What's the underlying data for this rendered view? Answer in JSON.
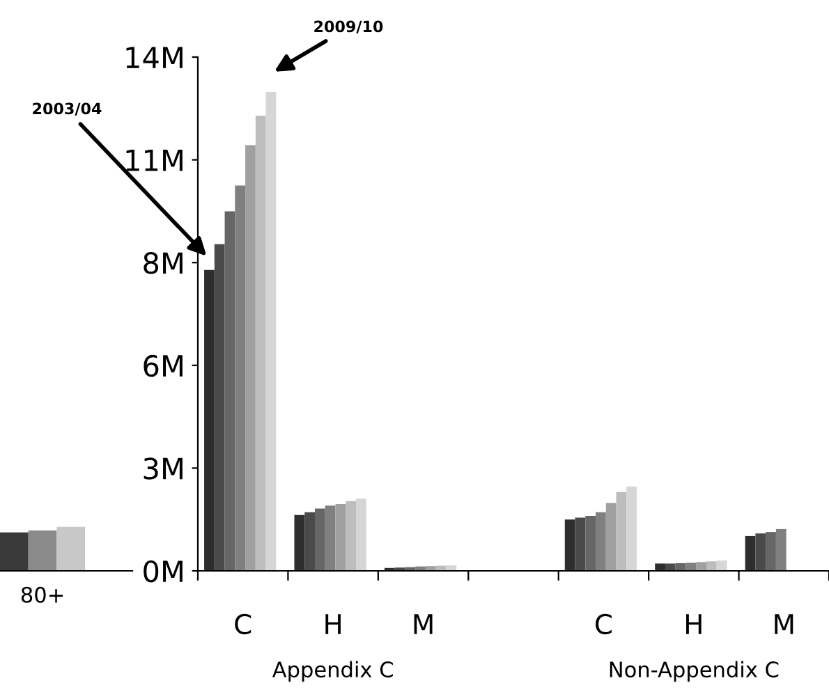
{
  "chart_data": [
    {
      "type": "bar",
      "categories": [
        "80+"
      ],
      "tick_labels": "x",
      "ylim": [
        0,
        14
      ],
      "series": [
        {
          "color": "#3a3a3a",
          "values": [
            1.05
          ]
        },
        {
          "color": "#8a8a8a",
          "values": [
            1.1
          ]
        },
        {
          "color": "#c8c8c8",
          "values": [
            1.2
          ]
        }
      ]
    },
    {
      "type": "bar",
      "categories": [
        "C",
        "H",
        "M",
        null,
        "C",
        "H",
        "M"
      ],
      "ylim": [
        0,
        14
      ],
      "yticks": [
        {
          "value": 0,
          "label": "0M"
        },
        {
          "value": 2.8,
          "label": "3M"
        },
        {
          "value": 5.6,
          "label": "6M"
        },
        {
          "value": 8.4,
          "label": "8M"
        },
        {
          "value": 11.2,
          "label": "11M"
        },
        {
          "value": 14,
          "label": "14M"
        }
      ],
      "series": [
        {
          "color": "#2e2e2e",
          "values": [
            8.2,
            1.52,
            0.08,
            null,
            1.4,
            0.2,
            0.95
          ]
        },
        {
          "color": "#4a4a4a",
          "values": [
            8.9,
            1.6,
            0.09,
            null,
            1.45,
            0.2,
            1.02
          ]
        },
        {
          "color": "#666666",
          "values": [
            9.8,
            1.7,
            0.1,
            null,
            1.5,
            0.21,
            1.06
          ]
        },
        {
          "color": "#808080",
          "values": [
            10.5,
            1.78,
            0.12,
            null,
            1.6,
            0.22,
            1.14
          ]
        },
        {
          "color": "#a0a0a0",
          "values": [
            11.6,
            1.82,
            0.13,
            null,
            1.85,
            0.24,
            null
          ]
        },
        {
          "color": "#bdbdbd",
          "values": [
            12.4,
            1.9,
            0.14,
            null,
            2.15,
            0.26,
            null
          ]
        },
        {
          "color": "#d6d6d6",
          "values": [
            13.05,
            1.97,
            0.15,
            null,
            2.3,
            0.28,
            null
          ]
        }
      ],
      "annotations": [
        "2003/04",
        "2009/10",
        "Appendix C",
        "Non-Appendix C"
      ]
    }
  ]
}
